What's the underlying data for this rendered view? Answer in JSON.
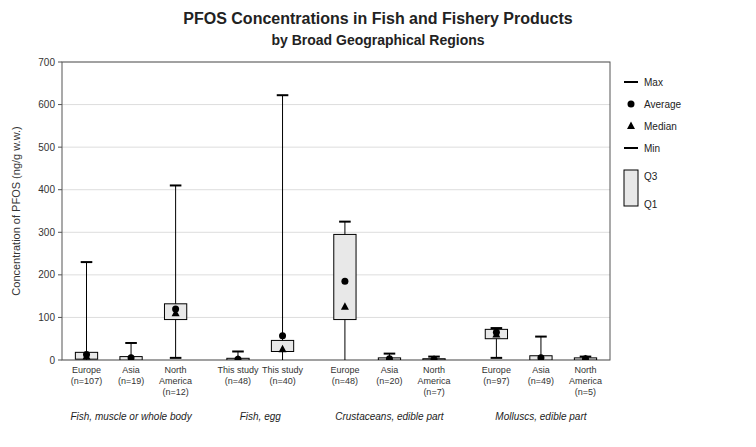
{
  "chart_data": {
    "type": "box",
    "title": "PFOS Concentrations in Fish and Fishery Products",
    "subtitle": "by Broad Geographical Regions",
    "y_label": "Concentration of PFOS (ng/g w.w.)",
    "ylim": [
      0,
      700
    ],
    "yticks": [
      0,
      100,
      200,
      300,
      400,
      500,
      600,
      700
    ],
    "grid": true,
    "groups": [
      {
        "label": "Fish, muscle or whole body",
        "categories": [
          "Europe\n(n=107)",
          "Asia\n(n=19)",
          "North\nAmerica\n(n=12)"
        ]
      },
      {
        "label": "Fish, egg",
        "categories": [
          "This study\n(n=48)",
          "This study\n(n=40)"
        ]
      },
      {
        "label": "Crustaceans, edible part",
        "categories": [
          "Europe\n(n=48)",
          "Asia\n(n=20)",
          "North\nAmerica\n(n=7)"
        ]
      },
      {
        "label": "Molluscs, edible part",
        "categories": [
          "Europe\n(n=97)",
          "Asia\n(n=49)",
          "North\nAmerica\n(n=5)"
        ]
      }
    ],
    "series": [
      {
        "name": "Max",
        "marker": "line",
        "color": "#000000",
        "values": [
          230,
          40,
          410,
          20,
          622,
          325,
          15,
          8,
          75,
          55,
          8
        ]
      },
      {
        "name": "Average",
        "marker": "circle",
        "color": "#000000",
        "values": [
          13,
          5,
          120,
          2,
          57,
          185,
          3,
          1,
          65,
          5,
          3
        ]
      },
      {
        "name": "Median",
        "marker": "triangle",
        "color": "#000000",
        "values": [
          8,
          3,
          110,
          1,
          25,
          125,
          2,
          1,
          60,
          3,
          2
        ]
      },
      {
        "name": "Min",
        "marker": "line",
        "color": "#000000",
        "values": [
          0,
          0,
          5,
          0,
          0,
          0,
          0,
          0,
          5,
          0,
          0
        ]
      },
      {
        "name": "Q3",
        "marker": "box",
        "color": "#E8E8E8",
        "values": [
          18,
          8,
          132,
          4,
          46,
          295,
          5,
          3,
          72,
          10,
          5
        ]
      },
      {
        "name": "Q1",
        "marker": "box",
        "color": "#E8E8E8",
        "values": [
          2,
          0,
          95,
          0,
          20,
          95,
          0,
          0,
          50,
          0,
          0
        ]
      }
    ]
  }
}
